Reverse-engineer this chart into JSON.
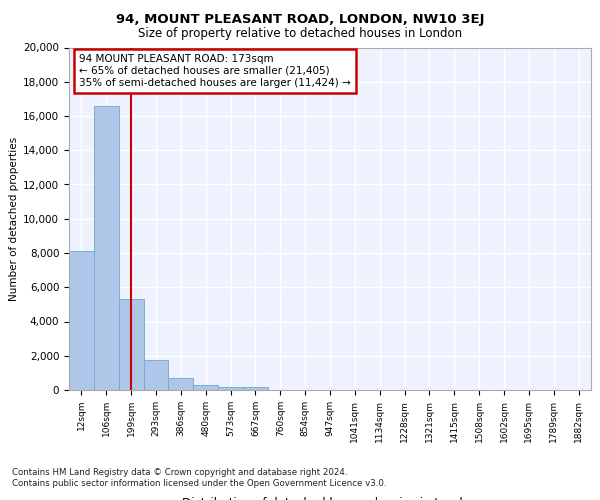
{
  "title": "94, MOUNT PLEASANT ROAD, LONDON, NW10 3EJ",
  "subtitle": "Size of property relative to detached houses in London",
  "xlabel": "Distribution of detached houses by size in London",
  "ylabel": "Number of detached properties",
  "bar_color": "#aec6e8",
  "bar_edge_color": "#7aadd4",
  "background_color": "#eef2ff",
  "property_line_color": "#cc0000",
  "annotation_text": "94 MOUNT PLEASANT ROAD: 173sqm\n← 65% of detached houses are smaller (21,405)\n35% of semi-detached houses are larger (11,424) →",
  "categories": [
    "12sqm",
    "106sqm",
    "199sqm",
    "293sqm",
    "386sqm",
    "480sqm",
    "573sqm",
    "667sqm",
    "760sqm",
    "854sqm",
    "947sqm",
    "1041sqm",
    "1134sqm",
    "1228sqm",
    "1321sqm",
    "1415sqm",
    "1508sqm",
    "1602sqm",
    "1695sqm",
    "1789sqm",
    "1882sqm"
  ],
  "bar_heights": [
    8100,
    16600,
    5300,
    1750,
    700,
    280,
    200,
    200,
    0,
    0,
    0,
    0,
    0,
    0,
    0,
    0,
    0,
    0,
    0,
    0,
    0
  ],
  "ylim": [
    0,
    20000
  ],
  "yticks": [
    0,
    2000,
    4000,
    6000,
    8000,
    10000,
    12000,
    14000,
    16000,
    18000,
    20000
  ],
  "footer_text": "Contains HM Land Registry data © Crown copyright and database right 2024.\nContains public sector information licensed under the Open Government Licence v3.0."
}
